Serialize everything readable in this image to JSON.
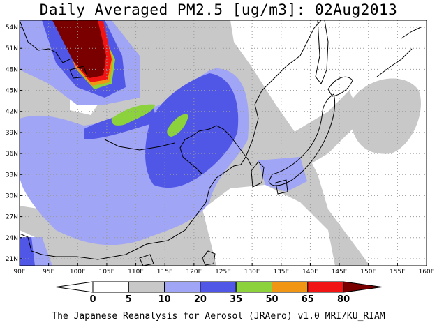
{
  "title": "Daily Averaged PM2.5 [ug/m3]: 02Aug2013",
  "footer": "The Japanese Reanalysis for Aerosol (JRAero) v1.0 MRI/KU_RIAM",
  "map": {
    "lon_range": [
      90,
      160
    ],
    "lat_range": [
      20,
      55
    ],
    "lon_ticks": [
      "90E",
      "95E",
      "100E",
      "105E",
      "110E",
      "115E",
      "120E",
      "125E",
      "130E",
      "135E",
      "140E",
      "145E",
      "150E",
      "155E",
      "160E"
    ],
    "lat_ticks": [
      "54N",
      "51N",
      "48N",
      "45N",
      "42N",
      "39N",
      "36N",
      "33N",
      "30N",
      "27N",
      "24N",
      "21N"
    ]
  },
  "legend": {
    "labels": [
      "0",
      "5",
      "10",
      "20",
      "35",
      "50",
      "65",
      "80"
    ],
    "colors": [
      "#ffffff",
      "#ffffff",
      "#c8c8c8",
      "#a0a5f5",
      "#5056e6",
      "#8cd23c",
      "#f09614",
      "#f01414",
      "#7a0000"
    ]
  }
}
